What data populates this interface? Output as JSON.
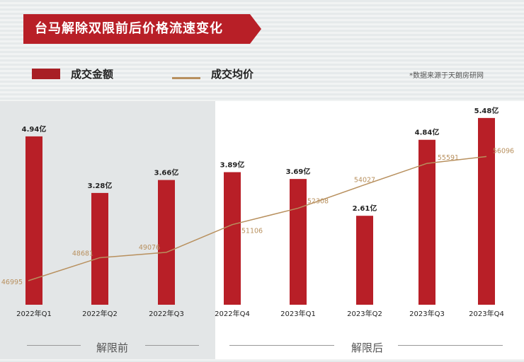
{
  "chart_data": {
    "type": "bar+line",
    "title": "台马解除双限前后价格流速变化",
    "source": "*数据来源于天朗房研网",
    "categories": [
      "2022年Q1",
      "2022年Q2",
      "2022年Q3",
      "2022年Q4",
      "2023年Q1",
      "2023年Q2",
      "2023年Q3",
      "2023年Q4"
    ],
    "series": [
      {
        "name": "成交金额",
        "type": "bar",
        "unit": "亿",
        "values": [
          4.94,
          3.28,
          3.66,
          3.89,
          3.69,
          2.61,
          4.84,
          5.48
        ],
        "labels": [
          "4.94亿",
          "3.28亿",
          "3.66亿",
          "3.89亿",
          "3.69亿",
          "2.61亿",
          "4.84亿",
          "5.48亿"
        ]
      },
      {
        "name": "成交均价",
        "type": "line",
        "values": [
          46995,
          48681,
          49076,
          51106,
          52308,
          54027,
          55591,
          56096
        ],
        "labels": [
          "46995",
          "48681",
          "49076",
          "51106",
          "52308",
          "54027",
          "55591",
          "56096"
        ]
      }
    ],
    "periods": [
      "解限前",
      "解限后"
    ],
    "colors": {
      "bar": "#b81f27",
      "line": "#b8905e",
      "title_bg": "#b81f27"
    }
  }
}
